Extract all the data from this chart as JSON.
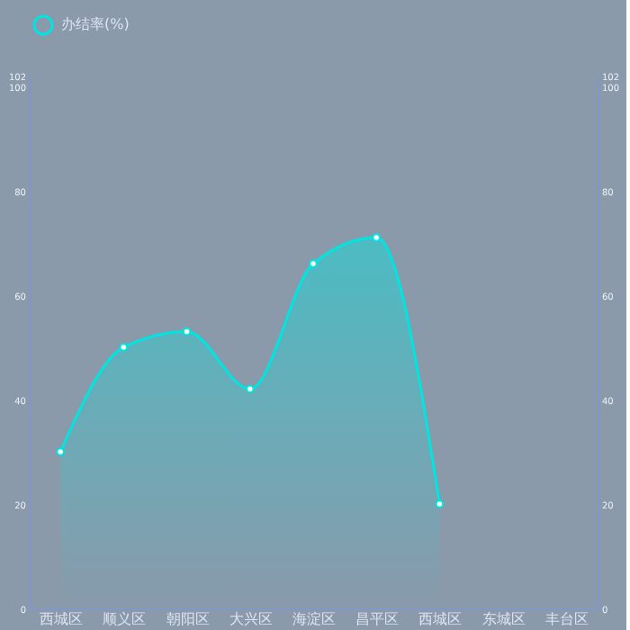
{
  "chart_data": {
    "type": "area",
    "categories": [
      "西城区",
      "顺义区",
      "朝阳区",
      "大兴区",
      "海淀区",
      "昌平区",
      "西城区",
      "东城区",
      "丰台区"
    ],
    "series": [
      {
        "name": "办结率(%)",
        "color": "#00e5e0",
        "values": [
          30,
          50,
          53,
          42,
          66,
          71,
          20,
          null,
          null
        ]
      }
    ],
    "ylim": [
      0,
      102
    ],
    "yticks": [
      0,
      20,
      40,
      60,
      80,
      100,
      102
    ],
    "y2lim": [
      0,
      102
    ],
    "y2ticks": [
      0,
      20,
      40,
      60,
      80,
      100,
      102
    ],
    "marker": "circle",
    "line_style": "solid",
    "grid": false,
    "legend": "top"
  }
}
